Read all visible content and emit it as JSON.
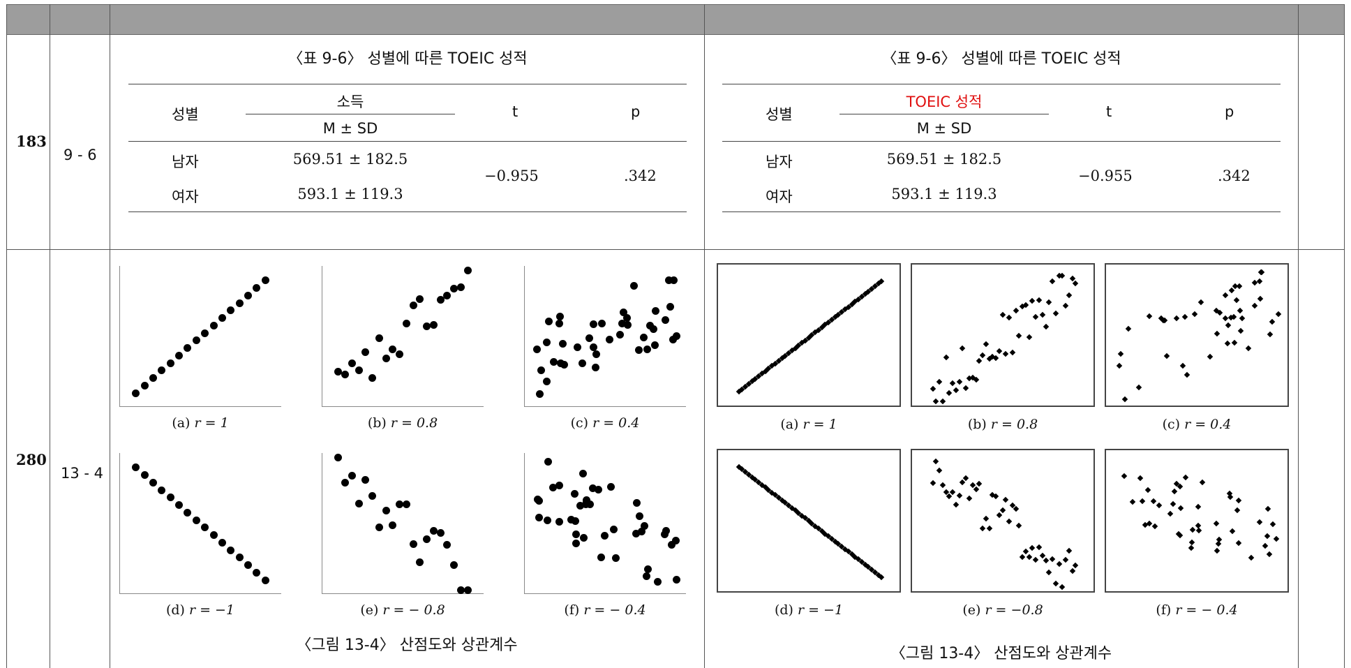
{
  "rows": [
    {
      "page": "183",
      "section": "9 - 6"
    },
    {
      "page": "280",
      "section": "13 - 4"
    }
  ],
  "table_before": {
    "caption": "〈표 9-6〉 성별에 따른 TOEIC 성적",
    "col_gender": "성별",
    "col_group": "소득",
    "col_msd": "M ± SD",
    "col_t": "t",
    "col_p": "p",
    "rows": [
      {
        "label": "남자",
        "value": "569.51 ± 182.5"
      },
      {
        "label": "여자",
        "value": "593.1 ± 119.3"
      }
    ],
    "t": "−0.955",
    "p": ".342"
  },
  "table_after": {
    "caption": "〈표 9-6〉 성별에 따른 TOEIC 성적",
    "col_gender": "성별",
    "col_group": "TOEIC 성적",
    "col_msd": "M ± SD",
    "col_t": "t",
    "col_p": "p",
    "rows": [
      {
        "label": "남자",
        "value": "569.51 ± 182.5"
      },
      {
        "label": "여자",
        "value": "593.1 ± 119.3"
      }
    ],
    "t": "−0.955",
    "p": ".342",
    "highlight_color": "#e01010"
  },
  "figure_before": {
    "caption": "〈그림 13-4〉 산점도와 상관계수",
    "panels": [
      {
        "id": "a",
        "label": "(a)",
        "r": "r = 1"
      },
      {
        "id": "b",
        "label": "(b)",
        "r": "r = 0.8"
      },
      {
        "id": "c",
        "label": "(c)",
        "r": "r = 0.4"
      },
      {
        "id": "d",
        "label": "(d)",
        "r": "r = −1"
      },
      {
        "id": "e",
        "label": "(e)",
        "r": "r = − 0.8"
      },
      {
        "id": "f",
        "label": "(f)",
        "r": "r = − 0.4"
      }
    ]
  },
  "figure_after": {
    "caption": "〈그림 13-4〉 산점도와 상관계수",
    "panels": [
      {
        "id": "a",
        "label": "(a)",
        "r": "r = 1"
      },
      {
        "id": "b",
        "label": "(b)",
        "r": "r = 0.8"
      },
      {
        "id": "c",
        "label": "(c)",
        "r": "r = 0.4"
      },
      {
        "id": "d",
        "label": "(d)",
        "r": "r = −1"
      },
      {
        "id": "e",
        "label": "(e)",
        "r": "r = −0.8"
      },
      {
        "id": "f",
        "label": "(f)",
        "r": "r = − 0.4"
      }
    ]
  }
}
